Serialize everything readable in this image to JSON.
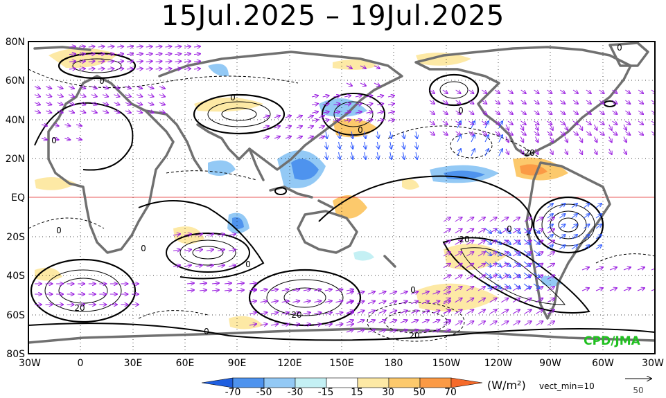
{
  "title": "15Jul.2025 – 19Jul.2025",
  "lat_labels": [
    "80N",
    "60N",
    "40N",
    "20N",
    "EQ",
    "20S",
    "40S",
    "60S",
    "80S"
  ],
  "lon_labels": [
    "30W",
    "0",
    "30E",
    "60E",
    "90E",
    "120E",
    "150E",
    "180",
    "150W",
    "120W",
    "90W",
    "60W",
    "30W"
  ],
  "contour_labels": [
    "0",
    "0",
    "0",
    "0",
    "0",
    "0",
    "0",
    "0",
    "0",
    "0",
    "0",
    "0",
    "20",
    "20",
    "20",
    "20",
    "-20"
  ],
  "colorbar": {
    "ticks": [
      "-70",
      "-50",
      "-30",
      "-15",
      "15",
      "30",
      "50",
      "70"
    ],
    "colors": [
      "#1f5fe0",
      "#4e93ee",
      "#93c9f5",
      "#c4f0f4",
      "#ffffff",
      "#fde9a5",
      "#fcc96c",
      "#fb9a45",
      "#f56a2a"
    ],
    "unit": "(W/m²)",
    "vect_note": "vect_min=10"
  },
  "reference_vector_value": "50",
  "credit": "CPD/JMA",
  "colors": {
    "vector_purple": "#9a1ee0",
    "vector_blue": "#2a55ff",
    "vector_green": "#20c020",
    "coast": "#707070",
    "equator": "#e02020"
  }
}
